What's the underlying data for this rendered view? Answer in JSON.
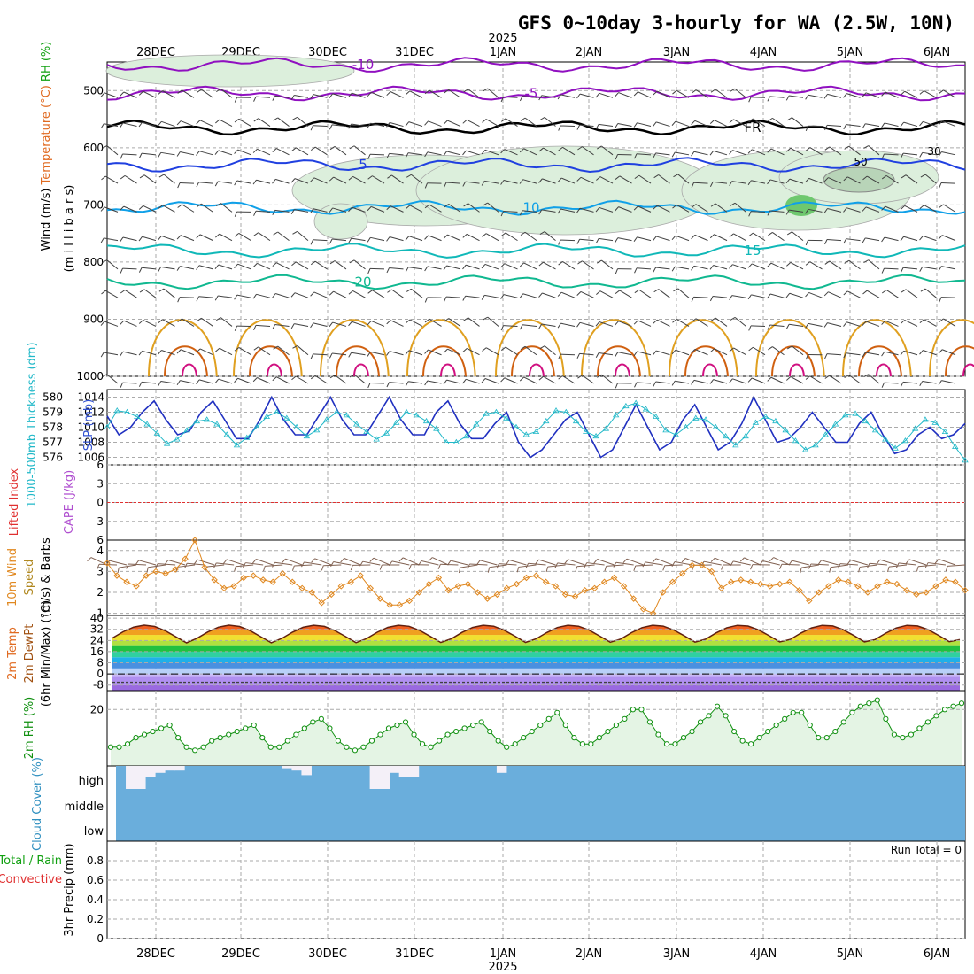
{
  "title": "GFS 0~10day 3-hourly for WA (2.5W, 10N)",
  "year_label": "2025",
  "date_labels": [
    "28DEC",
    "29DEC",
    "30DEC",
    "31DEC",
    "1JAN",
    "2JAN",
    "3JAN",
    "4JAN",
    "5JAN",
    "6JAN"
  ],
  "run_total": "Run Total = 0",
  "colors": {
    "grid": "#aaaaaa",
    "wind": "#404040",
    "temp_cold": "#9010c0",
    "temp_fr": "#000000",
    "temp_5": "#2040e0",
    "temp_10": "#10a0e8",
    "temp_15": "#10b8b8",
    "temp_20": "#10b890",
    "temp_warm": "#e0a020",
    "temp_hot": "#d06010",
    "temp_hotter": "#d01080",
    "slp": "#2030c0",
    "thickness": "#20b8c8",
    "li": "#e03030",
    "wind10": "#e08820",
    "rh2m": "#109010",
    "cloud": "#6aaedc",
    "cloud_gap": "#f4f0f8"
  },
  "chart_data": [
    {
      "type": "contour",
      "name": "upper-air",
      "ylabel_parts": [
        "RH (%)",
        "Temperature (°C)",
        "Wind (m/s)"
      ],
      "ylabel_unit": "(m i l l i b a r s)",
      "y_ticks": [
        500,
        600,
        700,
        800,
        900,
        1000
      ],
      "ylim": [
        450,
        1000
      ],
      "isotherm_labels": [
        "-10",
        "-5",
        "FR",
        "5",
        "10",
        "15",
        "20"
      ],
      "isotherm_levels_mb": {
        "-10": 455,
        "-5": 505,
        "FR": 565,
        "5": 630,
        "10": 705,
        "15": 780,
        "20": 835
      },
      "rh_labels": [
        "30",
        "50"
      ]
    },
    {
      "type": "line",
      "name": "slp-thickness",
      "ylabel_left": "1000-500mb Thickness (dm)",
      "ylabel_right": "SLP (mb)",
      "thickness_ticks": [
        576,
        577,
        578,
        579,
        580
      ],
      "slp_ticks": [
        1006,
        1008,
        1010,
        1012,
        1014
      ],
      "slp_lim": [
        1005,
        1015
      ],
      "slp": [
        1011.5,
        1009,
        1010,
        1012,
        1013.5,
        1011,
        1009,
        1009.5,
        1012,
        1013.5,
        1011,
        1008.5,
        1008.5,
        1011,
        1014,
        1011,
        1009,
        1009,
        1011.5,
        1014,
        1011,
        1009,
        1009,
        1011.5,
        1014,
        1011,
        1009,
        1009,
        1012,
        1013.5,
        1010.5,
        1008.5,
        1008.5,
        1010.5,
        1012,
        1008,
        1006,
        1007,
        1009,
        1011,
        1012,
        1009,
        1006,
        1007,
        1010,
        1013,
        1010,
        1007,
        1008,
        1011,
        1013,
        1010,
        1007,
        1008,
        1010.5,
        1014,
        1011,
        1008,
        1008.5,
        1010,
        1012,
        1010,
        1008,
        1008,
        1010.5,
        1012,
        1009,
        1006.5,
        1007,
        1009,
        1010,
        1008.5,
        1009,
        1010.5
      ],
      "thickness": [
        578.0,
        579.1,
        579.0,
        578.7,
        578.2,
        577.6,
        576.9,
        577.2,
        577.8,
        578.4,
        578.5,
        578.2,
        577.5,
        576.8,
        577.3,
        578.0,
        578.7,
        579.0,
        578.6,
        578.0,
        577.4,
        577.8,
        578.5,
        579.0,
        578.8,
        578.2,
        577.7,
        577.2,
        577.6,
        578.3,
        579.0,
        578.8,
        578.4,
        577.9,
        577.0,
        577.0,
        577.4,
        578.2,
        578.9,
        579.0,
        578.6,
        578.0,
        577.5,
        577.7,
        578.4,
        579.1,
        579.0,
        578.4,
        577.7,
        577.4,
        577.9,
        578.8,
        579.4,
        579.6,
        579.2,
        578.7,
        577.8,
        577.5,
        578.0,
        578.6,
        578.5,
        578.0,
        577.4,
        576.8,
        577.4,
        578.3,
        578.7,
        578.4,
        577.8,
        577.1,
        576.5,
        576.8,
        577.5,
        578.2,
        578.8,
        578.9,
        578.4,
        577.8,
        577.2,
        576.6,
        577.1,
        577.9,
        578.5,
        578.3,
        577.7,
        576.7,
        575.8
      ]
    },
    {
      "type": "line",
      "name": "lifted-index-cape",
      "ylabel_left": "Lifted Index",
      "ylabel_right": "CAPE (J/kg)",
      "y_ticks": [
        -6,
        -3,
        0,
        3,
        6
      ],
      "y_tick_labels": [
        "6",
        "3",
        "0",
        "3",
        "6"
      ],
      "ylim": [
        -6,
        6
      ],
      "lifted_index": []
    },
    {
      "type": "line",
      "name": "wind10m",
      "ylabel": "10m Wind Speed (m/s) & Barbs",
      "ylabel_parts": [
        "10m Wind",
        "Speed",
        "(m/s) & Barbs"
      ],
      "y_ticks": [
        1,
        2,
        3,
        4
      ],
      "ylim": [
        0.9,
        4.5
      ],
      "speed": [
        3.4,
        2.8,
        2.5,
        2.3,
        2.8,
        3.0,
        2.9,
        3.1,
        3.6,
        4.5,
        3.2,
        2.6,
        2.2,
        2.3,
        2.7,
        2.8,
        2.6,
        2.5,
        2.9,
        2.5,
        2.2,
        2.0,
        1.5,
        1.9,
        2.3,
        2.5,
        2.8,
        2.2,
        1.7,
        1.4,
        1.4,
        1.6,
        2.0,
        2.4,
        2.7,
        2.1,
        2.3,
        2.4,
        2.0,
        1.7,
        1.9,
        2.2,
        2.4,
        2.7,
        2.8,
        2.5,
        2.3,
        1.9,
        1.8,
        2.1,
        2.2,
        2.5,
        2.7,
        2.3,
        1.7,
        1.2,
        1.0,
        2.0,
        2.5,
        2.9,
        3.3,
        3.3,
        3.0,
        2.2,
        2.5,
        2.6,
        2.5,
        2.4,
        2.3,
        2.4,
        2.5,
        2.1,
        1.6,
        2.0,
        2.3,
        2.6,
        2.5,
        2.3,
        2.0,
        2.3,
        2.5,
        2.4,
        2.1,
        1.9,
        2.0,
        2.3,
        2.6,
        2.5,
        2.1
      ]
    },
    {
      "type": "area",
      "name": "temp-dewpoint",
      "ylabel_parts": [
        "2m Temp",
        "2m DewPt",
        "(6hr Min/Max) (°C)"
      ],
      "y_ticks": [
        -8,
        0,
        8,
        16,
        24,
        32,
        40
      ],
      "ylim": [
        -12,
        42
      ],
      "temp_min": 22,
      "temp_max": 35,
      "dewpoint": -6
    },
    {
      "type": "line",
      "name": "rh2m",
      "ylabel": "2m RH (%)",
      "y_ticks": [
        20
      ],
      "ylim": [
        2,
        26
      ],
      "rh": [
        8,
        8,
        9,
        11,
        12,
        13,
        14,
        15,
        11,
        8,
        7,
        8,
        10,
        11,
        12,
        13,
        14,
        15,
        11,
        8,
        8,
        10,
        12,
        14,
        16,
        17,
        14,
        10,
        8,
        7,
        8,
        10,
        12,
        14,
        15,
        16,
        12,
        9,
        8,
        10,
        12,
        13,
        14,
        15,
        16,
        13,
        10,
        8,
        9,
        11,
        13,
        15,
        17,
        19,
        15,
        11,
        9,
        9,
        11,
        13,
        15,
        17,
        20,
        20,
        16,
        12,
        9,
        9,
        11,
        13,
        16,
        18,
        21,
        18,
        13,
        10,
        9,
        11,
        13,
        15,
        17,
        19,
        19,
        15,
        11,
        11,
        13,
        16,
        19,
        21,
        22,
        23,
        17,
        12,
        11,
        12,
        14,
        16,
        18,
        20,
        21,
        22
      ]
    },
    {
      "type": "bar",
      "name": "cloud-cover",
      "ylabel": "Cloud Cover (%)",
      "levels": [
        "high",
        "middle",
        "low"
      ],
      "gaps": [
        [
          0.0,
          0.0
        ],
        [
          1.0,
          0.93
        ],
        [
          1.0,
          0.9
        ],
        [
          0.5,
          0.8
        ],
        [
          0.3,
          0.8
        ],
        [
          0.2,
          0.8
        ],
        [
          0.2,
          0.8
        ],
        [
          0.0,
          0.9
        ],
        [
          0.0,
          1.0
        ],
        [
          0.0,
          0.95
        ],
        [
          0.0,
          1.0
        ],
        [
          0.0,
          1.0
        ],
        [
          0.0,
          1.0
        ],
        [
          0.0,
          1.0
        ],
        [
          0.0,
          0.9
        ],
        [
          0.0,
          0.9
        ],
        [
          0.0,
          1.0
        ],
        [
          0.1,
          1.0
        ],
        [
          0.2,
          1.0
        ],
        [
          0.4,
          0.8
        ],
        [
          0.0,
          1.0
        ],
        [
          0.0,
          1.0
        ],
        [
          0.0,
          1.0
        ],
        [
          0.0,
          1.0
        ],
        [
          0.0,
          1.0
        ],
        [
          0.0,
          1.0
        ],
        [
          1.0,
          0.9
        ],
        [
          1.0,
          0.9
        ],
        [
          0.3,
          0.9
        ],
        [
          0.5,
          0.85
        ],
        [
          0.5,
          0.8
        ],
        [
          0.0,
          1.0
        ],
        [
          0.0,
          1.0
        ],
        [
          0.0,
          1.0
        ],
        [
          0.0,
          1.0
        ],
        [
          0.0,
          1.0
        ],
        [
          0.0,
          1.0
        ],
        [
          0.0,
          1.0
        ],
        [
          0.0,
          0.95
        ],
        [
          0.3,
          0.8
        ],
        [
          0.0,
          1.0
        ],
        [
          0.0,
          1.0
        ],
        [
          0.0,
          1.0
        ],
        [
          0.0,
          1.0
        ],
        [
          0.0,
          1.0
        ],
        [
          0.0,
          1.0
        ],
        [
          0.0,
          1.0
        ],
        [
          0.0,
          0.9
        ],
        [
          0.0,
          1.0
        ],
        [
          0.0,
          1.0
        ],
        [
          0.0,
          1.0
        ],
        [
          0.0,
          1.0
        ],
        [
          0.0,
          1.0
        ],
        [
          0.0,
          1.0
        ],
        [
          0.0,
          1.0
        ],
        [
          0.0,
          1.0
        ],
        [
          0.0,
          1.0
        ],
        [
          0.0,
          1.0
        ],
        [
          0.0,
          1.0
        ],
        [
          0.0,
          1.0
        ],
        [
          0.0,
          1.0
        ],
        [
          0.0,
          1.0
        ],
        [
          0.0,
          1.0
        ],
        [
          0.0,
          1.0
        ],
        [
          0.0,
          1.0
        ],
        [
          0.0,
          1.0
        ],
        [
          0.0,
          1.0
        ],
        [
          0.0,
          1.0
        ],
        [
          0.0,
          1.0
        ],
        [
          0.0,
          1.0
        ],
        [
          0.0,
          1.0
        ],
        [
          0.0,
          1.0
        ],
        [
          0.0,
          1.0
        ],
        [
          0.0,
          1.0
        ],
        [
          0.0,
          1.0
        ],
        [
          0.0,
          1.0
        ],
        [
          0.0,
          1.0
        ],
        [
          0.0,
          1.0
        ],
        [
          0.0,
          1.0
        ],
        [
          0.0,
          1.0
        ],
        [
          0.0,
          1.0
        ],
        [
          0.0,
          1.0
        ],
        [
          0.0,
          1.0
        ],
        [
          0.0,
          1.0
        ],
        [
          0.0,
          1.0
        ],
        [
          0.0,
          1.0
        ],
        [
          0.0,
          1.0
        ]
      ]
    },
    {
      "type": "bar",
      "name": "precip",
      "ylabel_parts": [
        "Total / Rain",
        "Convective",
        "3hr Precip (mm)"
      ],
      "y_ticks": [
        0,
        0.2,
        0.4,
        0.6,
        0.8
      ],
      "ylim": [
        0,
        1.0
      ],
      "total": [],
      "convective": []
    }
  ]
}
